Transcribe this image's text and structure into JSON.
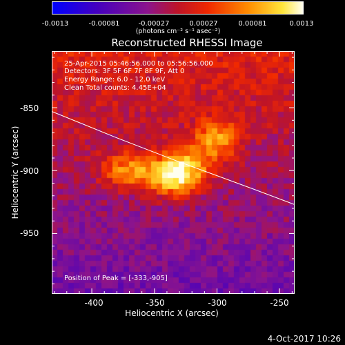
{
  "colorbar": {
    "tick_labels": [
      "-0.0013",
      "-0.00081",
      "-0.00027",
      "0.00027",
      "0.00081",
      "0.0013"
    ],
    "unit_label": "(photons cm⁻² s⁻¹ asec⁻²)",
    "range": [
      -0.0013,
      0.0013
    ]
  },
  "title": "Reconstructed RHESSI Image",
  "annotations": {
    "time_range": "25-Apr-2015 05:46:56.000 to 05:56:56.000",
    "detectors": "Detectors: 3F 5F 6F 7F 8F 9F, Att 0",
    "energy_range": "Energy Range: 6.0 - 12.0 keV",
    "clean_counts": "Clean     Total counts: 4.45E+04",
    "peak": "Position of Peak = [-333,-905]"
  },
  "axes": {
    "xlabel": "Heliocentric X (arcsec)",
    "ylabel": "Heliocentric Y (arcsec)",
    "xlim": [
      -432,
      -238
    ],
    "ylim": [
      -998,
      -805
    ],
    "xticks": [
      -400,
      -350,
      -300,
      -250
    ],
    "xtick_labels": [
      "-400",
      "-350",
      "-300",
      "-250"
    ],
    "yticks": [
      -950,
      -900,
      -850
    ],
    "ytick_labels": [
      "-950",
      "-900",
      "-850"
    ]
  },
  "limb_arc": [
    [
      -432,
      -853
    ],
    [
      -380,
      -874
    ],
    [
      -333,
      -892
    ],
    [
      -300,
      -904
    ],
    [
      -270,
      -915
    ],
    [
      -238,
      -927
    ]
  ],
  "sources": [
    {
      "x": -335,
      "y": -905,
      "amp": 1.0,
      "sx": 14,
      "sy": 11
    },
    {
      "x": -370,
      "y": -900,
      "amp": 0.75,
      "sx": 16,
      "sy": 10
    },
    {
      "x": -300,
      "y": -875,
      "amp": 0.7,
      "sx": 12,
      "sy": 11
    },
    {
      "x": -320,
      "y": -895,
      "amp": 0.55,
      "sx": 14,
      "sy": 12
    }
  ],
  "footer": "4-Oct-2017 10:26"
}
